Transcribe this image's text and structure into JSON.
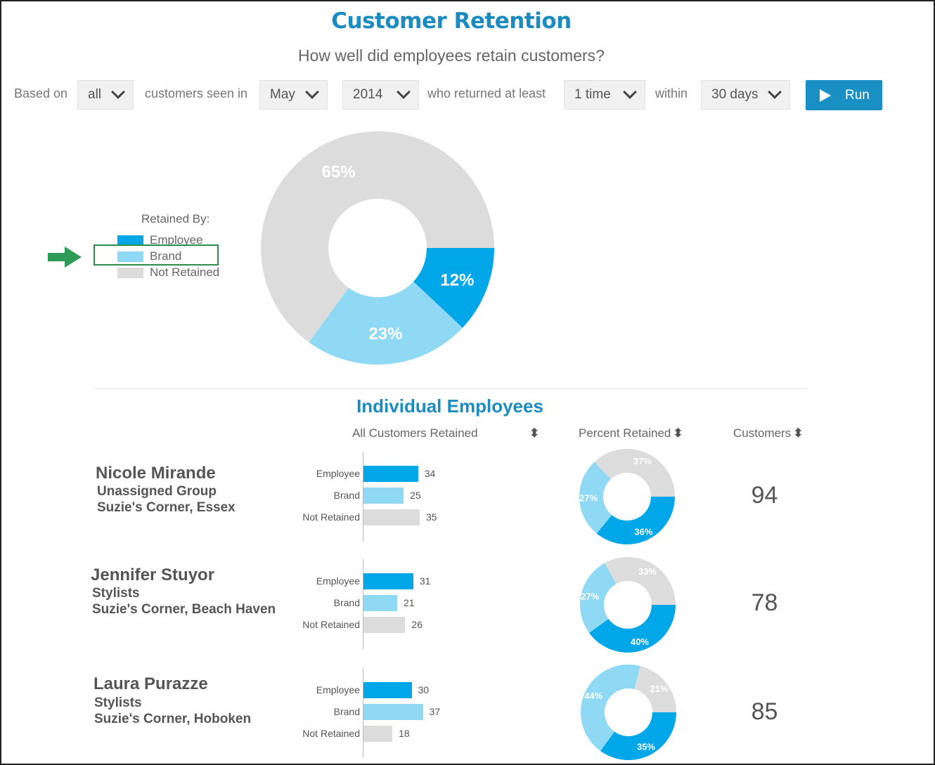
{
  "header": {
    "title": "Customer Retention",
    "subtitle": "How well did employees retain customers?"
  },
  "controls": {
    "based_on_label": "Based on",
    "based_on_value": "all",
    "seen_in_label": "customers seen in",
    "month_value": "May",
    "year_value": "2014",
    "returned_label": "who returned at least",
    "times_value": "1 time",
    "within_label": "within",
    "days_value": "30 days",
    "run_label": "Run"
  },
  "legend": {
    "title": "Retained By:",
    "items": [
      {
        "label": "Employee",
        "color": "#00a7e8"
      },
      {
        "label": "Brand",
        "color": "#8fd9f5"
      },
      {
        "label": "Not Retained",
        "color": "#dcdcdc"
      }
    ],
    "highlighted_item": "Brand"
  },
  "chart_data": [
    {
      "type": "pie",
      "donut": true,
      "categories": [
        "Employee",
        "Brand",
        "Not Retained"
      ],
      "values": [
        12,
        23,
        65
      ],
      "labels": [
        "12%",
        "23%",
        "65%"
      ],
      "colors": [
        "#00a7e8",
        "#8fd9f5",
        "#dcdcdc"
      ]
    }
  ],
  "employees_section": {
    "title": "Individual Employees",
    "columns": {
      "retained": "All Customers Retained",
      "percent": "Percent Retained",
      "customers": "Customers"
    },
    "sort_glyph": "⬍",
    "bar_categories": [
      "Employee",
      "Brand",
      "Not Retained"
    ],
    "bar_colors": [
      "#00a7e8",
      "#8fd9f5",
      "#dcdcdc"
    ],
    "employees": [
      {
        "name": "Nicole  Mirande",
        "group": "Unassigned Group",
        "location": "Suzie's Corner, Essex",
        "bars": [
          34,
          25,
          35
        ],
        "percents": [
          36,
          27,
          37
        ],
        "percent_labels": [
          "36%",
          "27%",
          "37%"
        ],
        "customers": "94"
      },
      {
        "name": "Jennifer  Stuyor",
        "group": "Stylists",
        "location": "Suzie's Corner, Beach Haven",
        "bars": [
          31,
          21,
          26
        ],
        "percents": [
          40,
          27,
          33
        ],
        "percent_labels": [
          "40%",
          "27%",
          "33%"
        ],
        "customers": "78"
      },
      {
        "name": "Laura Purazze",
        "group": "Stylists",
        "location": "Suzie's Corner, Hoboken",
        "bars": [
          30,
          37,
          18
        ],
        "percents": [
          35,
          44,
          21
        ],
        "percent_labels": [
          "35%",
          "44%",
          "21%"
        ],
        "customers": "85"
      }
    ]
  }
}
